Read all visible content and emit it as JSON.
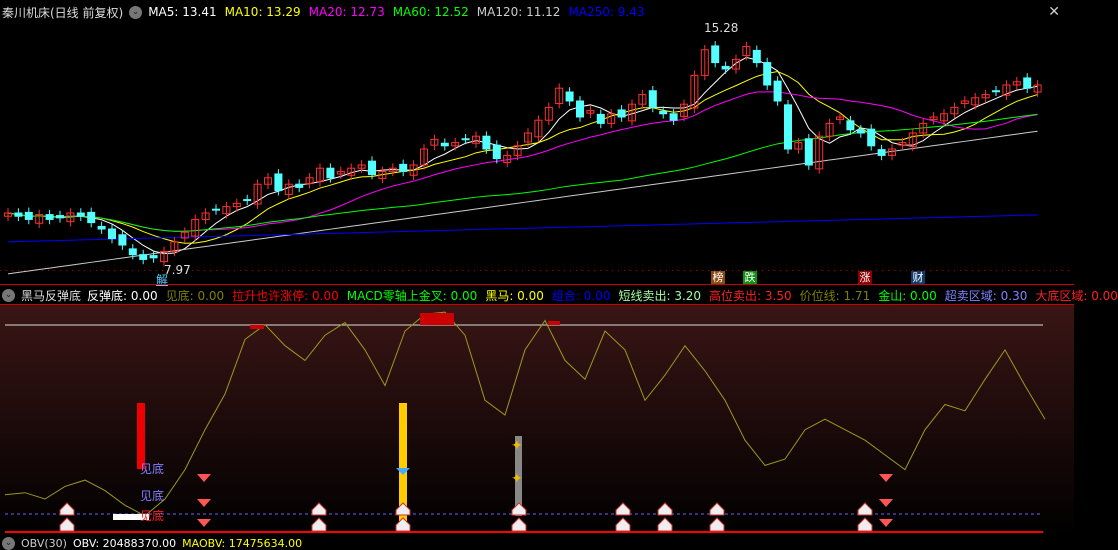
{
  "header": {
    "title": "秦川机床(日线 前复权)",
    "ma": [
      {
        "label": "MA5: 13.41",
        "color": "#ffffff"
      },
      {
        "label": "MA10: 13.29",
        "color": "#ffff00"
      },
      {
        "label": "MA20: 12.73",
        "color": "#ff00ff"
      },
      {
        "label": "MA60: 12.52",
        "color": "#00ff00"
      },
      {
        "label": "MA120: 11.12",
        "color": "#cccccc"
      },
      {
        "label": "MA250: 9.43",
        "color": "#0000ff"
      }
    ]
  },
  "price_annotations": {
    "high": "15.28",
    "low": "7.97",
    "jie": "解"
  },
  "event_tags": [
    {
      "text": "榜",
      "color": "#8b4a10"
    },
    {
      "text": "跌",
      "color": "#109010"
    },
    {
      "text": "涨",
      "color": "#8b0000"
    },
    {
      "text": "财",
      "color": "#103a6b"
    }
  ],
  "closes": [
    9.5,
    9.4,
    9.3,
    9.45,
    9.3,
    9.35,
    9.5,
    9.4,
    9.2,
    9.0,
    8.7,
    8.5,
    8.2,
    8.05,
    8.1,
    8.3,
    8.6,
    8.9,
    9.3,
    9.5,
    9.6,
    9.7,
    9.8,
    9.9,
    10.4,
    10.6,
    10.2,
    10.4,
    10.3,
    10.6,
    10.9,
    10.6,
    10.8,
    10.9,
    11.0,
    10.7,
    10.8,
    10.9,
    10.8,
    11.0,
    11.5,
    11.8,
    11.6,
    11.7,
    11.8,
    11.9,
    11.5,
    11.2,
    11.3,
    11.6,
    12.0,
    12.4,
    12.8,
    13.4,
    13.0,
    12.5,
    12.7,
    12.3,
    12.6,
    12.5,
    12.9,
    13.2,
    12.8,
    12.6,
    12.4,
    12.9,
    13.8,
    14.6,
    14.2,
    14.0,
    14.3,
    14.7,
    14.2,
    13.5,
    13.0,
    11.5,
    11.7,
    11.0,
    11.9,
    12.3,
    12.5,
    12.1,
    12.0,
    11.6,
    11.3,
    11.5,
    11.7,
    12.0,
    12.3,
    12.5,
    12.6,
    12.8,
    13.0,
    13.1,
    13.2,
    13.3,
    13.5,
    13.6,
    13.4,
    13.5
  ],
  "indicator": {
    "title": "黑马反弹底",
    "items": [
      {
        "label": "反弹底: 0.00",
        "color": "#ffffff"
      },
      {
        "label": "见底: 0.00",
        "color": "#808000"
      },
      {
        "label": "拉升也许涨停: 0.00",
        "color": "#ff0000"
      },
      {
        "label": "MACD零轴上金叉: 0.00",
        "color": "#00ff00"
      },
      {
        "label": "黑马: 0.00",
        "color": "#ffff00"
      },
      {
        "label": "组合: 0.00",
        "color": "#0000ff"
      },
      {
        "label": "短线卖出: 3.20",
        "color": "#a0ffa0"
      },
      {
        "label": "高位卖出: 3.50",
        "color": "#ff2020"
      },
      {
        "label": "价位线: 1.71",
        "color": "#808000"
      },
      {
        "label": "金山: 0.00",
        "color": "#00ff00"
      },
      {
        "label": "超卖区域: 0.30",
        "color": "#8080ff"
      },
      {
        "label": "大底区域: 0.00",
        "color": "#ff2020"
      }
    ],
    "signal_labels": [
      "见底",
      "见底",
      "见底"
    ],
    "oscillator": [
      12,
      13,
      10,
      16,
      19,
      14,
      7,
      2,
      10,
      24,
      43,
      60,
      86,
      93,
      83,
      76,
      88,
      94,
      81,
      64,
      90,
      98,
      99,
      88,
      57,
      50,
      81,
      95,
      76,
      67,
      90,
      81,
      57,
      69,
      83,
      71,
      57,
      38,
      26,
      29,
      43,
      48,
      43,
      38,
      31,
      24,
      43,
      55,
      52,
      67,
      81,
      64,
      48
    ]
  },
  "footer": {
    "items": [
      {
        "label": "OBV(30)",
        "color": "#cccccc"
      },
      {
        "label": "OBV: 20488370.00",
        "color": "#ffffff"
      },
      {
        "label": "MAOBV: 17475634.00",
        "color": "#ffff00"
      }
    ]
  }
}
